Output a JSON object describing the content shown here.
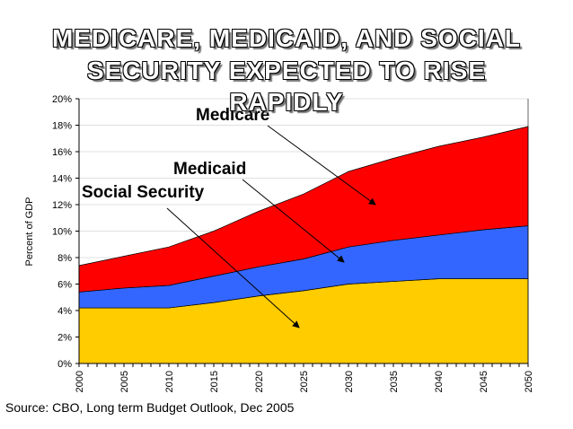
{
  "title_lines": [
    "MEDICARE, MEDICAID, AND SOCIAL",
    "SECURITY EXPECTED TO RISE",
    "RAPIDLY"
  ],
  "source": "Source: CBO, Long term Budget Outlook, Dec 2005",
  "chart_data": {
    "type": "area",
    "stacked": true,
    "title": "MEDICARE, MEDICAID, AND SOCIAL SECURITY EXPECTED TO RISE RAPIDLY",
    "xlabel": "",
    "ylabel": "Percent of GDP",
    "xlim": [
      2000,
      2050
    ],
    "ylim": [
      0,
      20
    ],
    "grid": true,
    "x": [
      2000,
      2005,
      2010,
      2015,
      2020,
      2025,
      2030,
      2035,
      2040,
      2045,
      2050
    ],
    "x_ticks": [
      "2000",
      "2005",
      "2010",
      "2015",
      "2020",
      "2025",
      "2030",
      "2035",
      "2040",
      "2045",
      "2050"
    ],
    "y_ticks": [
      "0%",
      "2%",
      "4%",
      "6%",
      "8%",
      "10%",
      "12%",
      "14%",
      "16%",
      "18%",
      "20%"
    ],
    "series": [
      {
        "name": "Social Security",
        "color": "#FFCC00",
        "values": [
          4.2,
          4.2,
          4.2,
          4.6,
          5.1,
          5.5,
          6.0,
          6.2,
          6.4,
          6.4,
          6.4
        ]
      },
      {
        "name": "Medicaid",
        "color": "#3366FF",
        "values": [
          1.2,
          1.5,
          1.7,
          2.0,
          2.2,
          2.4,
          2.8,
          3.1,
          3.3,
          3.7,
          4.0
        ]
      },
      {
        "name": "Medicare",
        "color": "#FF0000",
        "values": [
          2.0,
          2.4,
          2.9,
          3.4,
          4.2,
          4.9,
          5.7,
          6.2,
          6.7,
          7.0,
          7.5
        ]
      }
    ],
    "annotations": [
      {
        "text": "Medicare",
        "points_to": "Medicare"
      },
      {
        "text": "Medicaid",
        "points_to": "Medicaid"
      },
      {
        "text": "Social Security",
        "points_to": "Social Security"
      }
    ]
  }
}
